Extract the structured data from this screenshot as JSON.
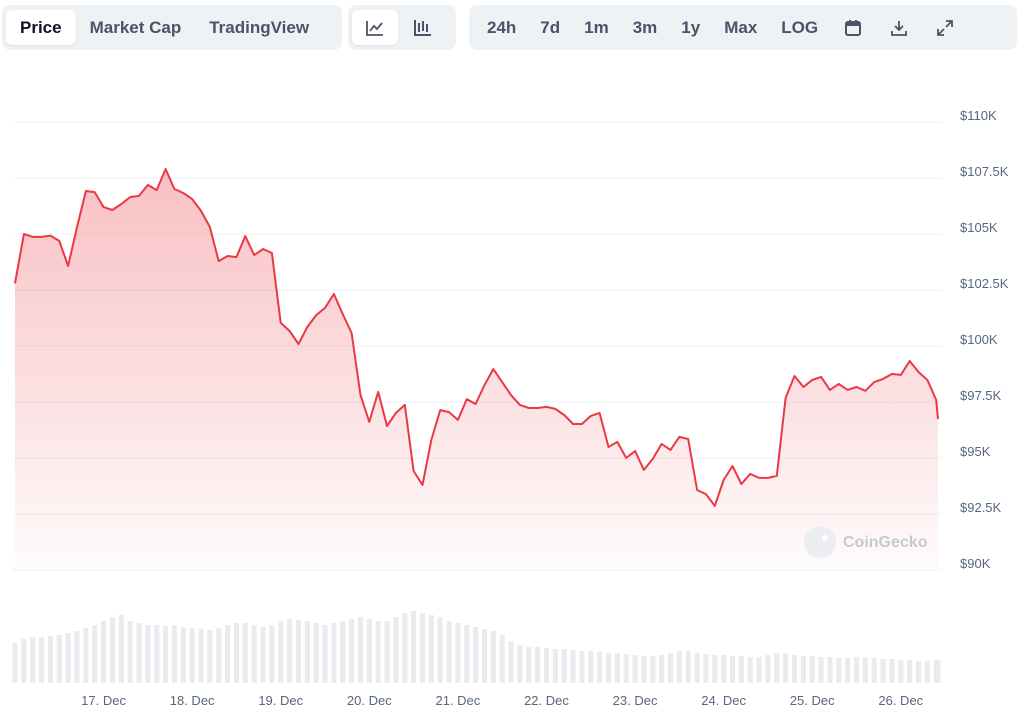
{
  "toolbar": {
    "views": [
      "Price",
      "Market Cap",
      "TradingView"
    ],
    "ranges": [
      "24h",
      "7d",
      "1m",
      "3m",
      "1y",
      "Max",
      "LOG"
    ]
  },
  "chart_data": {
    "type": "area",
    "color": "#ea3943",
    "watermark": "CoinGecko",
    "x": [
      16.0,
      16.1,
      16.2,
      16.3,
      16.4,
      16.5,
      16.6,
      16.7,
      16.8,
      16.9,
      17.0,
      17.1,
      17.2,
      17.3,
      17.4,
      17.5,
      17.6,
      17.7,
      17.8,
      17.9,
      18.0,
      18.1,
      18.2,
      18.3,
      18.4,
      18.5,
      18.6,
      18.7,
      18.8,
      18.9,
      19.0,
      19.1,
      19.2,
      19.3,
      19.4,
      19.5,
      19.6,
      19.7,
      19.8,
      19.9,
      20.0,
      20.1,
      20.2,
      20.3,
      20.4,
      20.5,
      20.6,
      20.7,
      20.8,
      20.9,
      21.0,
      21.1,
      21.2,
      21.3,
      21.4,
      21.5,
      21.6,
      21.7,
      21.8,
      21.9,
      22.0,
      22.1,
      22.2,
      22.3,
      22.4,
      22.5,
      22.6,
      22.7,
      22.8,
      22.9,
      23.0,
      23.1,
      23.2,
      23.3,
      23.4,
      23.5,
      23.6,
      23.7,
      23.8,
      23.9,
      24.0,
      24.1,
      24.2,
      24.3,
      24.4,
      24.5,
      24.6,
      24.7,
      24.8,
      24.9,
      25.0,
      25.1,
      25.2,
      25.3,
      25.4,
      25.5,
      25.6,
      25.7,
      25.8,
      25.9,
      26.0,
      26.1,
      26.2,
      26.3,
      26.4,
      26.42
    ],
    "values": [
      102800,
      105000,
      104870,
      104870,
      104930,
      104690,
      103570,
      105310,
      106920,
      106870,
      106200,
      106070,
      106340,
      106650,
      106700,
      107190,
      106960,
      107900,
      107010,
      106830,
      106560,
      106030,
      105310,
      103790,
      104020,
      103970,
      104910,
      104060,
      104330,
      104150,
      101030,
      100670,
      100090,
      100850,
      101380,
      101700,
      102320,
      101430,
      100580,
      97810,
      96610,
      97950,
      96430,
      97010,
      97370,
      94420,
      93800,
      95800,
      97140,
      97050,
      96700,
      97630,
      97410,
      98260,
      98970,
      98390,
      97810,
      97370,
      97230,
      97230,
      97280,
      97190,
      96920,
      96520,
      96520,
      96880,
      97010,
      95490,
      95720,
      95000,
      95310,
      94470,
      94960,
      95630,
      95360,
      95940,
      95850,
      93570,
      93390,
      92860,
      94020,
      94640,
      93840,
      94290,
      94110,
      94110,
      94200,
      97680,
      98660,
      98170,
      98480,
      98620,
      98040,
      98310,
      98040,
      98170,
      98000,
      98390,
      98530,
      98750,
      98710,
      99330,
      98840,
      98480,
      97590,
      96740
    ],
    "volume": [
      40,
      44,
      46,
      46,
      47,
      48,
      50,
      52,
      55,
      58,
      62,
      66,
      68,
      62,
      60,
      58,
      58,
      57,
      58,
      56,
      55,
      54,
      53,
      55,
      58,
      60,
      60,
      58,
      56,
      58,
      62,
      64,
      63,
      62,
      60,
      58,
      60,
      62,
      64,
      66,
      64,
      62,
      62,
      66,
      70,
      72,
      70,
      68,
      66,
      62,
      60,
      58,
      56,
      54,
      52,
      48,
      42,
      38,
      36,
      36,
      35,
      34,
      34,
      33,
      32,
      32,
      31,
      30,
      30,
      29,
      28,
      27,
      27,
      28,
      30,
      32,
      32,
      30,
      29,
      28,
      28,
      27,
      27,
      26,
      26,
      28,
      30,
      30,
      28,
      27,
      27,
      26,
      26,
      25,
      25,
      26,
      26,
      25,
      24,
      24,
      23,
      23,
      22,
      22,
      23,
      22
    ],
    "xlim": [
      16.0,
      26.42
    ],
    "xticks": [
      {
        "value": 17,
        "label": "17. Dec"
      },
      {
        "value": 18,
        "label": "18. Dec"
      },
      {
        "value": 19,
        "label": "19. Dec"
      },
      {
        "value": 20,
        "label": "20. Dec"
      },
      {
        "value": 21,
        "label": "21. Dec"
      },
      {
        "value": 22,
        "label": "22. Dec"
      },
      {
        "value": 23,
        "label": "23. Dec"
      },
      {
        "value": 24,
        "label": "24. Dec"
      },
      {
        "value": 25,
        "label": "25. Dec"
      },
      {
        "value": 26,
        "label": "26. Dec"
      }
    ],
    "ylim": [
      90000,
      110000
    ],
    "yticks": [
      {
        "value": 90000,
        "label": "$90K"
      },
      {
        "value": 92500,
        "label": "$92.5K"
      },
      {
        "value": 95000,
        "label": "$95K"
      },
      {
        "value": 97500,
        "label": "$97.5K"
      },
      {
        "value": 100000,
        "label": "$100K"
      },
      {
        "value": 102500,
        "label": "$102.5K"
      },
      {
        "value": 105000,
        "label": "$105K"
      },
      {
        "value": 107500,
        "label": "$107.5K"
      },
      {
        "value": 110000,
        "label": "$110K"
      }
    ],
    "grid": true
  }
}
